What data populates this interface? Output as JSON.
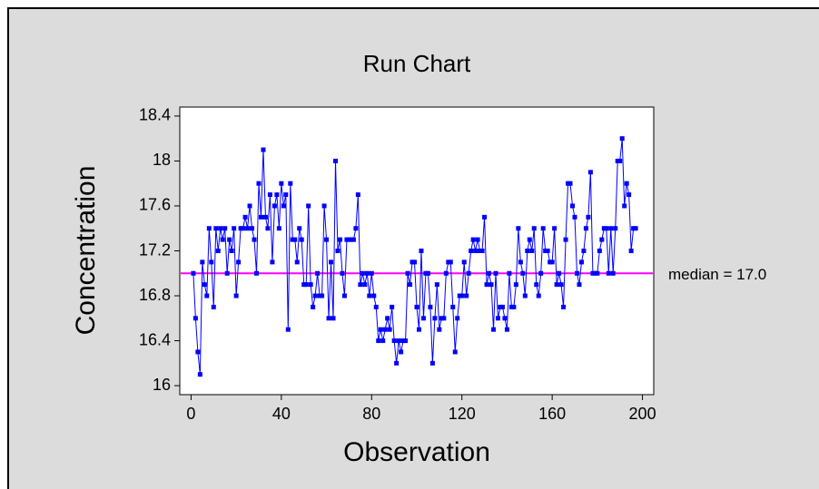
{
  "chart_data": {
    "type": "line",
    "title": "Run Chart",
    "x_label": "Observation",
    "y_label": "Concentration",
    "x": [
      1,
      2,
      3,
      4,
      5,
      6,
      7,
      8,
      9,
      10,
      11,
      12,
      13,
      14,
      15,
      16,
      17,
      18,
      19,
      20,
      21,
      22,
      23,
      24,
      25,
      26,
      27,
      28,
      29,
      30,
      31,
      32,
      33,
      34,
      35,
      36,
      37,
      38,
      39,
      40,
      41,
      42,
      43,
      44,
      45,
      46,
      47,
      48,
      49,
      50,
      51,
      52,
      53,
      54,
      55,
      56,
      57,
      58,
      59,
      60,
      61,
      62,
      63,
      64,
      65,
      66,
      67,
      68,
      69,
      70,
      71,
      72,
      73,
      74,
      75,
      76,
      77,
      78,
      79,
      80,
      81,
      82,
      83,
      84,
      85,
      86,
      87,
      88,
      89,
      90,
      91,
      92,
      93,
      94,
      95,
      96,
      97,
      98,
      99,
      100,
      101,
      102,
      103,
      104,
      105,
      106,
      107,
      108,
      109,
      110,
      111,
      112,
      113,
      114,
      115,
      116,
      117,
      118,
      119,
      120,
      121,
      122,
      123,
      124,
      125,
      126,
      127,
      128,
      129,
      130,
      131,
      132,
      133,
      134,
      135,
      136,
      137,
      138,
      139,
      140,
      141,
      142,
      143,
      144,
      145,
      146,
      147,
      148,
      149,
      150,
      151,
      152,
      153,
      154,
      155,
      156,
      157,
      158,
      159,
      160,
      161,
      162,
      163,
      164,
      165,
      166,
      167,
      168,
      169,
      170,
      171,
      172,
      173,
      174,
      175,
      176,
      177,
      178,
      179,
      180,
      181,
      182,
      183,
      184,
      185,
      186,
      187,
      188,
      189,
      190,
      191,
      192,
      193,
      194,
      195,
      196,
      197
    ],
    "series": [
      {
        "color": "#0000ff",
        "values": [
          17.0,
          16.6,
          16.3,
          16.1,
          17.1,
          16.9,
          16.8,
          17.4,
          17.1,
          16.7,
          17.4,
          17.2,
          17.4,
          17.3,
          17.4,
          17.0,
          17.3,
          17.2,
          17.4,
          16.8,
          17.1,
          17.4,
          17.4,
          17.5,
          17.4,
          17.6,
          17.4,
          17.3,
          17.0,
          17.8,
          17.5,
          18.1,
          17.5,
          17.4,
          17.7,
          17.1,
          17.6,
          17.7,
          17.4,
          17.8,
          17.6,
          17.7,
          16.5,
          17.8,
          17.3,
          17.3,
          17.1,
          17.4,
          17.3,
          16.9,
          16.9,
          17.6,
          16.9,
          16.7,
          16.8,
          17.0,
          16.8,
          16.8,
          17.6,
          17.3,
          16.6,
          17.1,
          16.6,
          18.0,
          17.2,
          17.3,
          17.0,
          16.8,
          17.3,
          17.3,
          17.3,
          17.3,
          17.4,
          17.7,
          16.9,
          17.0,
          16.9,
          17.0,
          16.8,
          17.0,
          16.8,
          16.7,
          16.4,
          16.5,
          16.4,
          16.5,
          16.6,
          16.5,
          16.7,
          16.4,
          16.2,
          16.4,
          16.3,
          16.4,
          16.4,
          17.0,
          16.9,
          17.1,
          17.1,
          16.7,
          16.5,
          17.2,
          16.6,
          17.0,
          17.0,
          16.7,
          16.2,
          16.6,
          16.9,
          16.5,
          16.6,
          16.6,
          17.0,
          17.1,
          17.1,
          16.7,
          16.3,
          16.6,
          16.8,
          16.8,
          17.1,
          16.8,
          17.0,
          17.2,
          17.3,
          17.2,
          17.3,
          17.2,
          17.2,
          17.5,
          16.9,
          17.0,
          16.9,
          16.5,
          17.0,
          16.6,
          16.7,
          16.7,
          16.6,
          16.5,
          17.0,
          16.7,
          16.7,
          16.9,
          17.4,
          17.1,
          17.0,
          16.8,
          17.2,
          17.3,
          17.2,
          17.4,
          16.9,
          16.8,
          17.0,
          17.4,
          17.2,
          17.2,
          17.1,
          17.1,
          17.4,
          16.9,
          17.0,
          16.9,
          16.7,
          17.3,
          17.8,
          17.8,
          17.6,
          17.5,
          17.0,
          16.9,
          17.1,
          17.2,
          17.4,
          17.5,
          17.9,
          17.0,
          17.0,
          17.0,
          17.2,
          17.3,
          17.4,
          17.4,
          17.0,
          17.4,
          17.0,
          17.4,
          18.0,
          18.0,
          18.2,
          17.6,
          17.8,
          17.7,
          17.2,
          17.4,
          17.4
        ]
      }
    ],
    "median": 17.0,
    "median_color": "#ff00ff",
    "median_label": "median = 17.0",
    "xlim": [
      -5,
      205
    ],
    "xticks": [
      0,
      40,
      80,
      120,
      160,
      200
    ],
    "ylim": [
      15.92,
      18.48
    ],
    "yticks": [
      16,
      16.4,
      16.8,
      17.2,
      17.6,
      18,
      18.4
    ]
  }
}
